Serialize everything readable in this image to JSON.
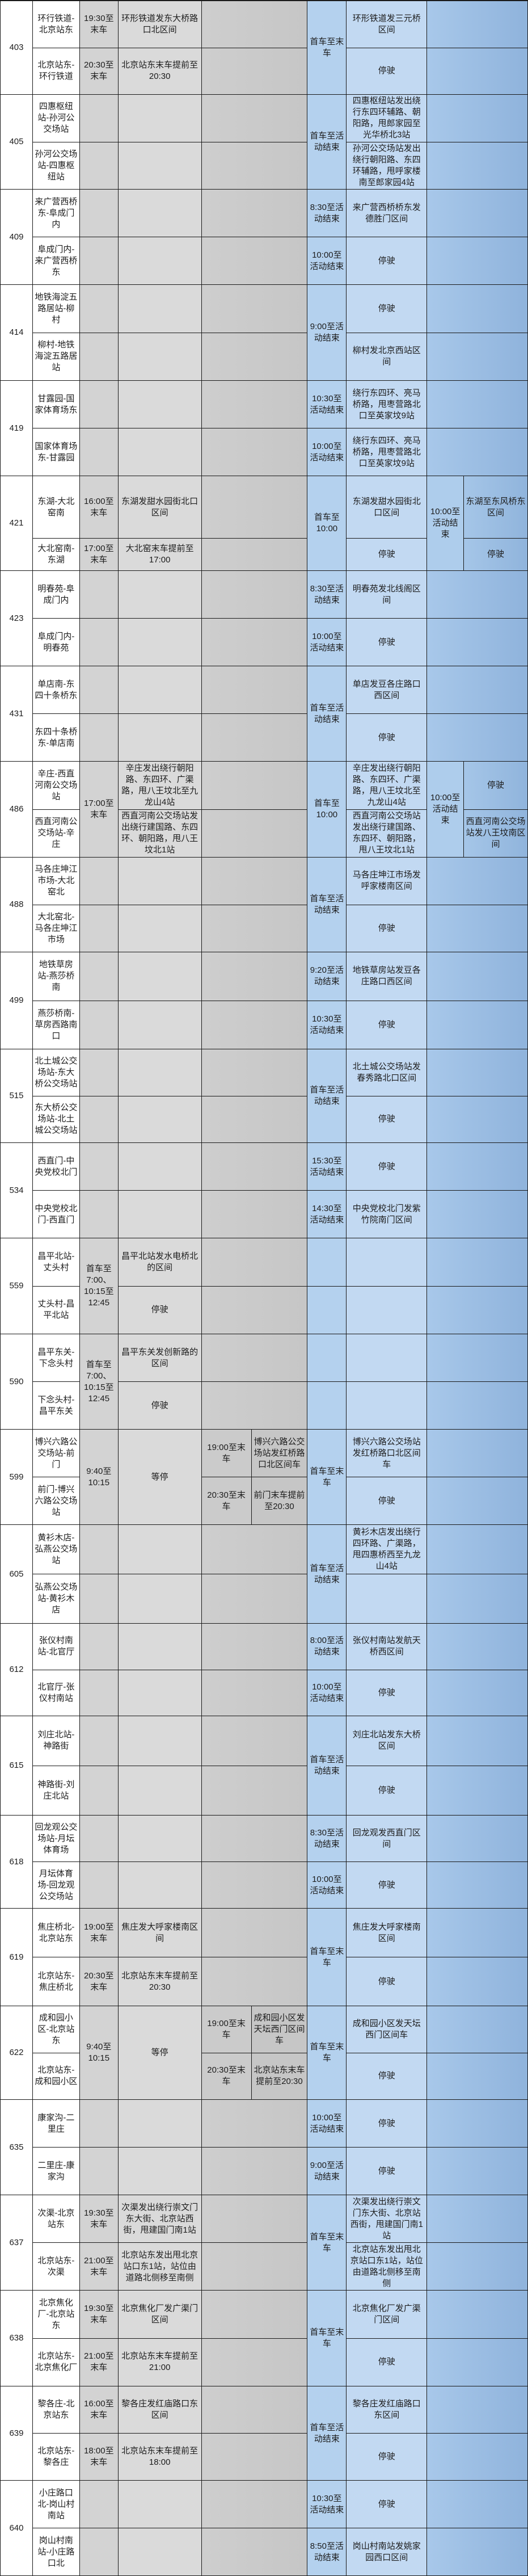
{
  "colors": {
    "grid_line": "#1a1a1a",
    "gray_time_col": "#d3d3d3",
    "gray_desc_col": "#dadada",
    "gray_extra_col": "#c9c9c9",
    "blue_time_col": "#b4d1ee",
    "blue_desc_col": "#c2d9f2",
    "blue_right_col": "#9cc0e4",
    "text": "#1c1c1c",
    "row_bg": "#ffffff"
  },
  "table": {
    "name": "公交线路运营调整表",
    "routes": [
      {
        "num": "403",
        "h": 165,
        "layout": "std",
        "cols": {
          "dir": {
            "r": [
              "环行铁道-北京站东",
              "北京站东-环行铁道"
            ]
          },
          "t1": {
            "r": [
              "19:30至末车",
              "20:30至末车"
            ]
          },
          "d1": {
            "r": [
              "环形铁道发东大桥路口北区间",
              "北京站东末车提前至20:30"
            ]
          },
          "bt": {
            "s": "首车至末车"
          },
          "bd": {
            "r": [
              "环形铁道发三元桥区间",
              "停驶"
            ]
          }
        }
      },
      {
        "num": "405",
        "h": 167,
        "layout": "std",
        "cols": {
          "dir": {
            "r": [
              "四惠枢纽站-孙河公交场站",
              "孙河公交场站-四惠枢纽站"
            ]
          },
          "bt": {
            "s": "首车至活动结束"
          },
          "bd": {
            "r": [
              "四惠枢纽站发出绕行东四环辅路、朝阳路，甩郎家园至光华桥北3站",
              "孙河公交场站发出绕行朝阳路、东四环辅路，甩呼家楼南至郎家园4站"
            ]
          }
        }
      },
      {
        "num": "409",
        "h": 168,
        "layout": "std",
        "cols": {
          "dir": {
            "r": [
              "来广营西桥东-阜成门内",
              "阜成门内-来广营西桥东"
            ]
          },
          "bt": {
            "r": [
              "8:30至活动结束",
              "10:00至活动结束"
            ]
          },
          "bd": {
            "r": [
              "来广营西桥桥东发德胜门区间",
              "停驶"
            ]
          }
        }
      },
      {
        "num": "414",
        "h": 169,
        "layout": "std",
        "cols": {
          "dir": {
            "r": [
              "地铁海淀五路居站-柳村",
              "柳村-地铁海淀五路居站"
            ]
          },
          "bt": {
            "s": "9:00至活动结束"
          },
          "bd": {
            "r": [
              "停驶",
              "柳村发北京西站区间"
            ]
          }
        }
      },
      {
        "num": "419",
        "h": 168,
        "layout": "std",
        "cols": {
          "dir": {
            "r": [
              "甘露园-国家体育场东",
              "国家体育场东-甘露园"
            ]
          },
          "bt": {
            "r": [
              "10:30至活动结束",
              "10:00至活动结束"
            ]
          },
          "bd": {
            "r": [
              "绕行东四环、亮马桥路，甩枣营路北口至英家坟9站",
              "绕行东四环、亮马桥路，甩枣营路北口至英家坟9站"
            ]
          }
        }
      },
      {
        "num": "421",
        "h": 167,
        "layout": "c89split",
        "split": [
          0.66,
          0.34
        ],
        "cols": {
          "dir": {
            "r": [
              "东湖-大北窑南",
              "大北窑南-东湖"
            ]
          },
          "t1": {
            "r": [
              "16:00至末车",
              "17:00至末车"
            ]
          },
          "d1": {
            "r": [
              "东湖发甜水园街北口区间",
              "大北窑末车提前至17:00"
            ]
          },
          "bt": {
            "s": "首车至10:00"
          },
          "bd": {
            "r": [
              "东湖发甜水园街北口区间",
              "停驶"
            ]
          },
          "t3": {
            "s": "10:00至活动结束"
          },
          "d3": {
            "r": [
              "东湖至东风桥东区间",
              "停驶"
            ]
          }
        }
      },
      {
        "num": "423",
        "h": 168,
        "layout": "std",
        "cols": {
          "dir": {
            "r": [
              "明春苑-阜成门内",
              "阜成门内-明春苑"
            ]
          },
          "bt": {
            "r": [
              "8:30至活动结束",
              "10:00至活动结束"
            ]
          },
          "bd": {
            "r": [
              "明春苑发北线阁区间",
              "停驶"
            ]
          }
        }
      },
      {
        "num": "431",
        "h": 168,
        "layout": "std",
        "cols": {
          "dir": {
            "r": [
              "单店南-东四十条桥东",
              "东四十条桥东-单店南"
            ]
          },
          "bt": {
            "s": "首车至活动结束"
          },
          "bd": {
            "r": [
              "单店发豆各庄路口西区间",
              "停驶"
            ]
          }
        }
      },
      {
        "num": "486",
        "h": 169,
        "layout": "c89split",
        "cols": {
          "dir": {
            "r": [
              "辛庄-西直河南公交场站",
              "西直河南公交场站-辛庄"
            ]
          },
          "t1": {
            "s": "17:00至末车"
          },
          "d1": {
            "r": [
              "辛庄发出绕行朝阳路、东四环、广渠路，甩八王坟北至九龙山4站",
              "西直河南公交场站发出绕行建国路、东四环、朝阳路，甩八王坟北1站"
            ]
          },
          "bt": {
            "s": "首车至10:00"
          },
          "bd": {
            "r": [
              "辛庄发出绕行朝阳路、东四环、广渠路，甩八王坟北至九龙山4站",
              "西直河南公交场站发出绕行建国路、东四环、朝阳路，甩八王坟北1站"
            ]
          },
          "t3": {
            "s": "10:00至活动结束"
          },
          "d3": {
            "r": [
              "停驶",
              "西直河南公交场站发八王坟南区间"
            ]
          }
        }
      },
      {
        "num": "488",
        "h": 167,
        "layout": "std",
        "cols": {
          "dir": {
            "r": [
              "马各庄坤江市场-大北窑北",
              "大北窑北-马各庄坤江市场"
            ]
          },
          "bt": {
            "s": "首车至活动结束"
          },
          "bd": {
            "r": [
              "马各庄坤江市场发呼家楼南区间",
              "停驶"
            ]
          }
        }
      },
      {
        "num": "499",
        "h": 171,
        "layout": "std",
        "cols": {
          "dir": {
            "r": [
              "地铁草房站-燕莎桥南",
              "燕莎桥南-草房西路南口"
            ]
          },
          "bt": {
            "r": [
              "9:20至活动结束",
              "10:30至活动结束"
            ]
          },
          "bd": {
            "r": [
              "地铁草房站发豆各庄路口西区间",
              "停驶"
            ]
          }
        }
      },
      {
        "num": "515",
        "h": 165,
        "layout": "std",
        "cols": {
          "dir": {
            "r": [
              "北土城公交场站-东大桥公交场站",
              "东大桥公交场站-北土城公交场站"
            ]
          },
          "bt": {
            "s": "首车至活动结束"
          },
          "bd": {
            "r": [
              "北土城公交场站发春秀路北口区间",
              "停驶"
            ]
          }
        }
      },
      {
        "num": "534",
        "h": 168,
        "layout": "std",
        "cols": {
          "dir": {
            "r": [
              "西直门-中央党校北门",
              "中央党校北门-西直门"
            ]
          },
          "bt": {
            "r": [
              "15:30至活动结束",
              "14:30至活动结束"
            ]
          },
          "bd": {
            "r": [
              "停驶",
              "中央党校北门发紫竹院南门区间"
            ]
          }
        }
      },
      {
        "num": "559",
        "h": 169,
        "layout": "std",
        "cols": {
          "dir": {
            "r": [
              "昌平北站-丈头村",
              "丈头村-昌平北站"
            ]
          },
          "t1": {
            "s": "首车至7:00、10:15至12:45"
          },
          "d1": {
            "r": [
              "昌平北站发水电桥北的区间",
              "停驶"
            ]
          }
        }
      },
      {
        "num": "590",
        "h": 168,
        "layout": "std",
        "cols": {
          "dir": {
            "r": [
              "昌平东关-下念头村",
              "下念头村-昌平东关"
            ]
          },
          "t1": {
            "s": "首车至7:00、10:15至12:45"
          },
          "d1": {
            "r": [
              "昌平东关发创新路的区间",
              "停驶"
            ]
          }
        }
      },
      {
        "num": "599",
        "h": 168,
        "layout": "c5split",
        "cols": {
          "dir": {
            "r": [
              "博兴六路公交场站-前门",
              "前门-博兴六路公交场站"
            ]
          },
          "t1": {
            "s": "9:40至10:15"
          },
          "d1": {
            "s": "等停"
          },
          "t2": {
            "r": [
              "19:00至末车",
              "20:30至末车"
            ]
          },
          "d2": {
            "r": [
              "博兴六路公交场站发红桥路口北区间车",
              "前门末车提前至20:30"
            ]
          },
          "bt": {
            "s": "首车至末车"
          },
          "bd": {
            "r": [
              "博兴六路公交场站发红桥路口北区间车",
              "停驶"
            ]
          }
        }
      },
      {
        "num": "605",
        "h": 174,
        "layout": "std",
        "cols": {
          "dir": {
            "r": [
              "黄衫木店-弘燕公交场站",
              "弘燕公交场站-黄衫木店"
            ]
          },
          "bt": {
            "s": "首车至活动结束"
          },
          "bd": {
            "r": [
              "黄衫木店发出绕行四环路、广渠路，甩四惠桥西至九龙山4站",
              ""
            ]
          }
        }
      },
      {
        "num": "612",
        "h": 163,
        "layout": "std",
        "cols": {
          "dir": {
            "r": [
              "张仪村南站-北官厅",
              "北官厅-张仪村南站"
            ]
          },
          "bt": {
            "r": [
              "8:00至活动结束",
              "10:00至活动结束"
            ]
          },
          "bd": {
            "r": [
              "张仪村南站发航天桥西区间",
              "停驶"
            ]
          }
        }
      },
      {
        "num": "615",
        "h": 175,
        "layout": "std",
        "cols": {
          "dir": {
            "r": [
              "刘庄北站-神路街",
              "神路街-刘庄北站"
            ]
          },
          "bt": {
            "s": "首车至活动结束"
          },
          "bd": {
            "r": [
              "刘庄北站发东大桥区间",
              "停驶"
            ]
          }
        }
      },
      {
        "num": "618",
        "h": 164,
        "layout": "std",
        "cols": {
          "dir": {
            "r": [
              "回龙观公交场站-月坛体育场",
              "月坛体育场-回龙观公交场站"
            ]
          },
          "bt": {
            "r": [
              "8:30至活动结束",
              "10:00至活动结束"
            ]
          },
          "bd": {
            "r": [
              "回龙观发西直门区间",
              "停驶"
            ]
          }
        }
      },
      {
        "num": "619",
        "h": 172,
        "layout": "std",
        "cols": {
          "dir": {
            "r": [
              "焦庄桥北-北京站东",
              "北京站东-焦庄桥北"
            ]
          },
          "t1": {
            "r": [
              "19:00至末车",
              "20:30至末车"
            ]
          },
          "d1": {
            "r": [
              "焦庄发大呼家楼南区间",
              "北京站东末车提前至20:30"
            ]
          },
          "bt": {
            "s": "首车至末车"
          },
          "bd": {
            "r": [
              "焦庄发大呼家楼南区间",
              "停驶"
            ]
          }
        }
      },
      {
        "num": "622",
        "h": 165,
        "layout": "c5split",
        "cols": {
          "dir": {
            "r": [
              "成和园小区-北京站东",
              "北京站东-成和园小区"
            ]
          },
          "t1": {
            "s": "9:40至10:15"
          },
          "d1": {
            "s": "等停"
          },
          "t2": {
            "r": [
              "19:00至末车",
              "20:30至末车"
            ]
          },
          "d2": {
            "r": [
              "成和园小区发天坛西门区间车",
              "北京站东末车提前至20:30"
            ]
          },
          "bt": {
            "s": "首车至末车"
          },
          "bd": {
            "r": [
              "成和园小区发天坛西门区间车",
              "停驶"
            ]
          }
        }
      },
      {
        "num": "635",
        "h": 168,
        "layout": "std",
        "cols": {
          "dir": {
            "r": [
              "康家沟-二里庄",
              "二里庄-康家沟"
            ]
          },
          "bt": {
            "r": [
              "10:00至活动结束",
              "9:00至活动结束"
            ]
          },
          "bd": {
            "r": [
              "停驶",
              "停驶"
            ]
          }
        }
      },
      {
        "num": "637",
        "h": 168,
        "layout": "std",
        "cols": {
          "dir": {
            "r": [
              "次渠-北京站东",
              "北京站东-次渠"
            ]
          },
          "t1": {
            "r": [
              "19:30至末车",
              "21:00至末车"
            ]
          },
          "d1": {
            "r": [
              "次渠发出绕行崇文门东大街、北京站西街，甩建国门南1站",
              "北京站东发出甩北京站口东1站，站位由道路北侧移至南侧"
            ]
          },
          "bt": {
            "s": "首车至末车"
          },
          "bd": {
            "r": [
              "次渠发出绕行崇文门东大街、北京站西街，甩建国门南1站",
              "北京站东发出甩北京站口东1站，站位由道路北侧移至南侧"
            ]
          }
        }
      },
      {
        "num": "638",
        "h": 169,
        "layout": "std",
        "cols": {
          "dir": {
            "r": [
              "北京焦化厂-北京站东",
              "北京站东-北京焦化厂"
            ]
          },
          "t1": {
            "r": [
              "19:30至末车",
              "21:00至末车"
            ]
          },
          "d1": {
            "r": [
              "北京焦化厂发广渠门区间",
              "北京站东末车提前至21:00"
            ]
          },
          "bt": {
            "s": "首车至末车"
          },
          "bd": {
            "r": [
              "北京焦化厂发广渠门区间",
              "停驶"
            ]
          }
        }
      },
      {
        "num": "639",
        "h": 166,
        "layout": "std",
        "cols": {
          "dir": {
            "r": [
              "黎各庄-北京站东",
              "北京站东-黎各庄"
            ]
          },
          "t1": {
            "r": [
              "16:00至末车",
              "18:00至末车"
            ]
          },
          "d1": {
            "r": [
              "黎各庄发红庙路口东区间",
              "北京站东末车提前至18:00"
            ]
          },
          "bt": {
            "s": "首车至活动结束"
          },
          "bd": {
            "r": [
              "黎各庄发红庙路口东区间",
              "停驶"
            ]
          }
        }
      },
      {
        "num": "640",
        "h": 168,
        "layout": "std",
        "cols": {
          "dir": {
            "r": [
              "小庄路口北-岗山村南站",
              "岗山村南站-小庄路口北"
            ]
          },
          "bt": {
            "r": [
              "10:30至活动结束",
              "8:50至活动结束"
            ]
          },
          "bd": {
            "r": [
              "停驶",
              "岗山村南站发姚家园西口区间"
            ]
          }
        }
      }
    ]
  }
}
